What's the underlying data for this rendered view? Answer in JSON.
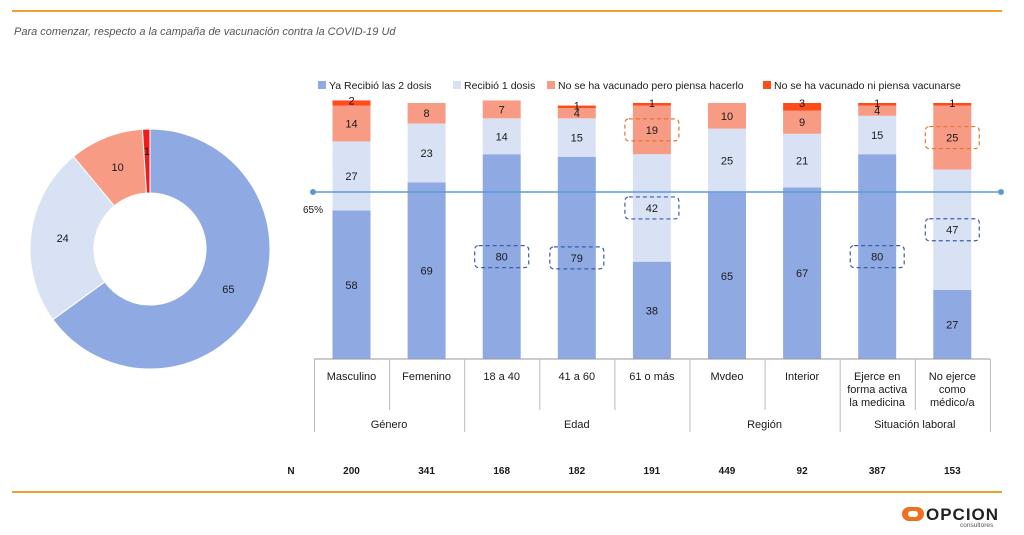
{
  "subtitle": "Para comenzar, respecto a la campaña de vacunación contra la COVID-19 Ud",
  "colors": {
    "rule": "#f0a030",
    "two_doses": "#8fa9e3",
    "one_dose": "#d9e2f4",
    "plans": "#f89b84",
    "no_plans": "#ff4a1a",
    "donut_no_plans": "#ee1c1c",
    "reference_line": "#5b9bd5"
  },
  "chart_data": [
    {
      "type": "pie",
      "variant": "donut",
      "values": [
        65,
        24,
        10,
        1
      ],
      "labels": [
        "65",
        "24",
        "10",
        "1"
      ]
    },
    {
      "type": "bar",
      "stacked": true,
      "percent": true,
      "categories": [
        "Masculino",
        "Femenino",
        "18 a 40",
        "41 a 60",
        "61 o más",
        "Mvdeo",
        "Interior",
        "Ejerce en forma activa la medicina",
        "No ejerce como médico/a"
      ],
      "category_lines": [
        [
          "Masculino"
        ],
        [
          "Femenino"
        ],
        [
          "18 a 40"
        ],
        [
          "41 a 60"
        ],
        [
          "61 o más"
        ],
        [
          "Mvdeo"
        ],
        [
          "Interior"
        ],
        [
          "Ejerce en",
          "forma activa",
          "la medicina"
        ],
        [
          "No ejerce",
          "como",
          "médico/a"
        ]
      ],
      "groups": [
        {
          "name": "Género",
          "span": [
            0,
            1
          ]
        },
        {
          "name": "Edad",
          "span": [
            2,
            4
          ]
        },
        {
          "name": "Región",
          "span": [
            5,
            6
          ]
        },
        {
          "name": "Situación laboral",
          "span": [
            7,
            8
          ]
        }
      ],
      "series": [
        {
          "name": "Ya Recibió las 2 dosis",
          "values": [
            58,
            69,
            80,
            79,
            38,
            65,
            67,
            80,
            27
          ]
        },
        {
          "name": "Recibió 1 dosis",
          "values": [
            27,
            23,
            14,
            15,
            42,
            25,
            21,
            15,
            47
          ]
        },
        {
          "name": "No se ha vacunado pero piensa hacerlo",
          "values": [
            14,
            8,
            7,
            4,
            19,
            10,
            9,
            4,
            25
          ]
        },
        {
          "name": "No se ha vacunado ni piensa vacunarse",
          "values": [
            2,
            0,
            0,
            1,
            1,
            0,
            3,
            1,
            1
          ]
        }
      ],
      "reference_line": {
        "value": 65,
        "label": "65%"
      },
      "highlighted": [
        {
          "category": 2,
          "series": 0
        },
        {
          "category": 3,
          "series": 0
        },
        {
          "category": 4,
          "series": 1
        },
        {
          "category": 4,
          "series": 2
        },
        {
          "category": 7,
          "series": 0
        },
        {
          "category": 8,
          "series": 1
        },
        {
          "category": 8,
          "series": 2
        }
      ],
      "legend_position": "top",
      "n_label": "N",
      "n_values": [
        "200",
        "341",
        "168",
        "182",
        "191",
        "449",
        "92",
        "387",
        "153"
      ]
    }
  ],
  "logo": {
    "text": "OPCION",
    "sub": "consultores"
  }
}
